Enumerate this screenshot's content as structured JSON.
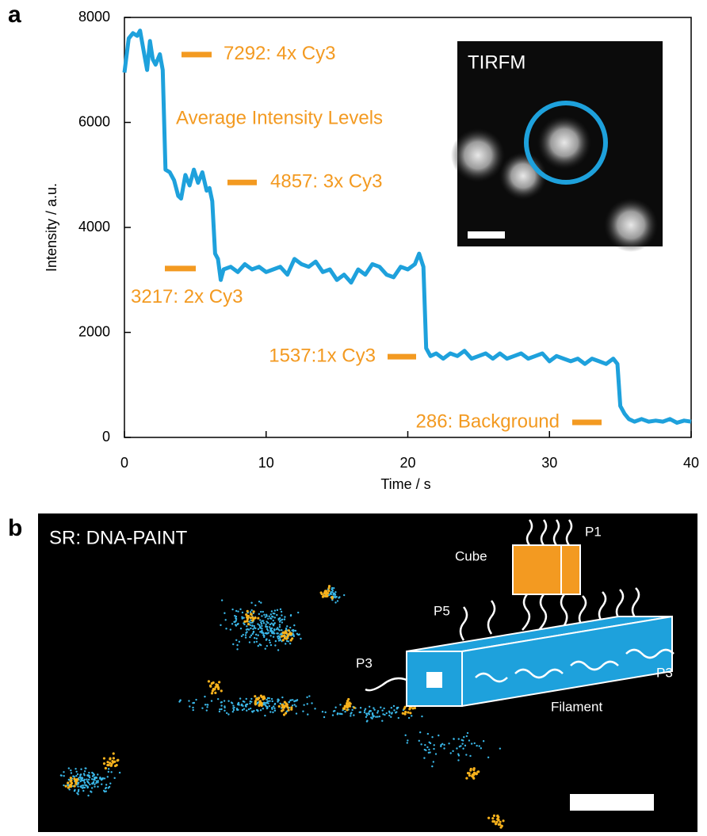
{
  "panels": {
    "a": "a",
    "b": "b"
  },
  "chart_data": {
    "type": "line",
    "xlabel": "Time / s",
    "ylabel": "Intensity / a.u.",
    "xlim": [
      0,
      40
    ],
    "ylim": [
      0,
      8000
    ],
    "xticks": [
      0,
      10,
      20,
      30,
      40
    ],
    "yticks": [
      0,
      2000,
      4000,
      6000,
      8000
    ],
    "color": "#1ea1dc",
    "x": [
      0,
      0.3,
      0.6,
      0.9,
      1.1,
      1.4,
      1.6,
      1.8,
      2.0,
      2.2,
      2.5,
      2.7,
      2.9,
      3.2,
      3.5,
      3.8,
      4.0,
      4.3,
      4.6,
      4.9,
      5.2,
      5.5,
      5.8,
      6.0,
      6.2,
      6.4,
      6.6,
      6.8,
      7.0,
      7.5,
      8.0,
      8.5,
      9.0,
      9.5,
      10,
      10.5,
      11,
      11.5,
      12,
      12.5,
      13,
      13.5,
      14,
      14.5,
      15,
      15.5,
      16,
      16.5,
      17,
      17.5,
      18,
      18.5,
      19,
      19.5,
      20,
      20.5,
      20.8,
      21.1,
      21.3,
      21.6,
      22,
      22.5,
      23,
      23.5,
      24,
      24.5,
      25,
      25.5,
      26,
      26.5,
      27,
      27.5,
      28,
      28.5,
      29,
      29.5,
      30,
      30.5,
      31,
      31.5,
      32,
      32.5,
      33,
      33.5,
      34,
      34.5,
      34.8,
      35.0,
      35.3,
      35.6,
      36,
      36.5,
      37,
      37.5,
      38,
      38.5,
      39,
      39.5,
      40
    ],
    "values": [
      6950,
      7600,
      7700,
      7650,
      7750,
      7300,
      7000,
      7550,
      7200,
      7100,
      7300,
      7000,
      5100,
      5050,
      4900,
      4600,
      4550,
      5000,
      4800,
      5100,
      4850,
      5050,
      4700,
      4750,
      4500,
      3500,
      3400,
      3000,
      3200,
      3250,
      3150,
      3300,
      3200,
      3250,
      3150,
      3200,
      3250,
      3100,
      3400,
      3300,
      3250,
      3350,
      3150,
      3200,
      3000,
      3100,
      2950,
      3200,
      3100,
      3300,
      3250,
      3100,
      3050,
      3250,
      3200,
      3300,
      3500,
      3250,
      1700,
      1550,
      1600,
      1500,
      1600,
      1550,
      1650,
      1500,
      1550,
      1600,
      1500,
      1600,
      1500,
      1550,
      1600,
      1500,
      1550,
      1600,
      1450,
      1550,
      1500,
      1450,
      1500,
      1400,
      1500,
      1450,
      1400,
      1500,
      1400,
      600,
      450,
      350,
      300,
      350,
      300,
      320,
      300,
      350,
      280,
      320,
      300
    ],
    "levels_title": "Average Intensity Levels",
    "level_color": "#f39a21",
    "annotations": [
      {
        "value": 7292,
        "label": "7292: 4x Cy3"
      },
      {
        "value": 4857,
        "label": "4857: 3x Cy3"
      },
      {
        "value": 3217,
        "label": "3217: 2x Cy3"
      },
      {
        "value": 1537,
        "label": "1537:1x Cy3"
      },
      {
        "value": 286,
        "label": "286: Background"
      }
    ]
  },
  "inset": {
    "title": "TIRFM"
  },
  "panel_b": {
    "title": "SR: DNA-PAINT",
    "cube": "Cube",
    "p1": "P1",
    "p5": "P5",
    "p3_left": "P3",
    "p3_right": "P3",
    "filament": "Filament"
  }
}
